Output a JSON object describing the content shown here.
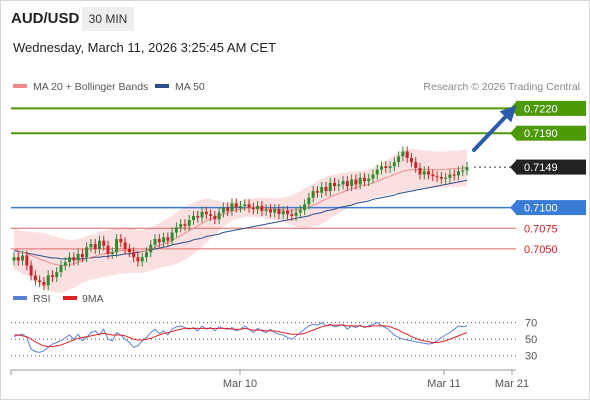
{
  "header": {
    "symbol": "AUD/USD",
    "timeframe": "30 MIN",
    "datetime": "Wednesday, March 11, 2026 3:25:45 AM CET"
  },
  "legend": {
    "ma20_label": "MA 20 + Bollinger Bands",
    "ma50_label": "MA 50",
    "credit": "Research © 2026 Trading Central",
    "rsi_label": "RSI",
    "rsi_ma_label": "9MA"
  },
  "colors": {
    "up_candle": "#2e8b2e",
    "down_candle": "#cc2222",
    "bollinger_fill": "#fadadd",
    "ma20": "#f08a8a",
    "ma50": "#2a4e8c",
    "resistance": "#4e9a06",
    "support_blue": "#3a7bd5",
    "support_red": "#e06666",
    "rsi": "#5b7fd6",
    "rsi_ma": "#dd2222"
  },
  "chart_data": [
    {
      "type": "candlestick",
      "ylim": [
        0.701,
        0.7235
      ],
      "x_ticks": [
        "Mar 10",
        "Mar 11",
        "Mar 21"
      ],
      "levels": [
        {
          "label": "0.7220",
          "value": 0.722,
          "kind": "resistance"
        },
        {
          "label": "0.7190",
          "value": 0.719,
          "kind": "resistance"
        },
        {
          "label": "0.7149",
          "value": 0.7149,
          "kind": "last"
        },
        {
          "label": "0.7100",
          "value": 0.71,
          "kind": "support-blue"
        },
        {
          "label": "0.7075",
          "value": 0.7075,
          "kind": "support-red"
        },
        {
          "label": "0.7050",
          "value": 0.705,
          "kind": "support-red"
        }
      ],
      "close": [
        0.704,
        0.7036,
        0.7042,
        0.703,
        0.7018,
        0.7012,
        0.701,
        0.7006,
        0.7018,
        0.7016,
        0.7022,
        0.703,
        0.7034,
        0.704,
        0.7036,
        0.7044,
        0.704,
        0.7052,
        0.7056,
        0.705,
        0.706,
        0.7054,
        0.7044,
        0.7046,
        0.7062,
        0.7058,
        0.705,
        0.7046,
        0.704,
        0.7035,
        0.704,
        0.7046,
        0.7055,
        0.7062,
        0.7058,
        0.7064,
        0.706,
        0.707,
        0.7076,
        0.708,
        0.7078,
        0.7085,
        0.709,
        0.7088,
        0.7095,
        0.7092,
        0.709,
        0.7086,
        0.7094,
        0.71,
        0.7096,
        0.7105,
        0.71,
        0.7102,
        0.7104,
        0.71,
        0.7098,
        0.7102,
        0.7096,
        0.7098,
        0.7094,
        0.7098,
        0.7092,
        0.7096,
        0.7092,
        0.709,
        0.7094,
        0.7097,
        0.7104,
        0.7112,
        0.712,
        0.7118,
        0.7125,
        0.712,
        0.713,
        0.7126,
        0.7128,
        0.7132,
        0.7126,
        0.7134,
        0.7128,
        0.7136,
        0.7132,
        0.7135,
        0.714,
        0.7146,
        0.715,
        0.7148,
        0.715,
        0.7155,
        0.7162,
        0.7168,
        0.716,
        0.7155,
        0.7148,
        0.714,
        0.7144,
        0.714,
        0.7138,
        0.7137,
        0.7135,
        0.7136,
        0.714,
        0.7139,
        0.7144,
        0.7145,
        0.7149
      ],
      "ma20": [
        0.705,
        0.7048,
        0.7046,
        0.7044,
        0.7042,
        0.704,
        0.7038,
        0.7036,
        0.7034,
        0.7032,
        0.7031,
        0.703,
        0.703,
        0.7031,
        0.7032,
        0.7034,
        0.7036,
        0.7038,
        0.704,
        0.7041,
        0.7043,
        0.7044,
        0.7045,
        0.7046,
        0.7047,
        0.7048,
        0.7048,
        0.7048,
        0.7048,
        0.7047,
        0.7047,
        0.7048,
        0.705,
        0.7052,
        0.7054,
        0.7056,
        0.7058,
        0.706,
        0.7063,
        0.7066,
        0.7069,
        0.7072,
        0.7075,
        0.7078,
        0.7081,
        0.7084,
        0.7086,
        0.7088,
        0.709,
        0.7092,
        0.7094,
        0.7096,
        0.7097,
        0.7098,
        0.7099,
        0.71,
        0.71,
        0.71,
        0.71,
        0.7099,
        0.7099,
        0.7098,
        0.7098,
        0.7097,
        0.7097,
        0.7097,
        0.7097,
        0.7098,
        0.7099,
        0.7101,
        0.7103,
        0.7105,
        0.7108,
        0.711,
        0.7113,
        0.7115,
        0.7117,
        0.7119,
        0.7121,
        0.7123,
        0.7124,
        0.7126,
        0.7127,
        0.7128,
        0.713,
        0.7132,
        0.7134,
        0.7136,
        0.7138,
        0.714,
        0.7142,
        0.7144,
        0.7145,
        0.7146,
        0.7146,
        0.7146,
        0.7146,
        0.7146,
        0.7146,
        0.7146,
        0.7146,
        0.7146,
        0.7147,
        0.7147,
        0.7147,
        0.7148,
        0.7148
      ],
      "ma50": [
        0.7048,
        0.7047,
        0.7046,
        0.7045,
        0.7044,
        0.7043,
        0.7042,
        0.7041,
        0.704,
        0.7039,
        0.7039,
        0.7038,
        0.7038,
        0.7038,
        0.7038,
        0.7038,
        0.7038,
        0.7039,
        0.7039,
        0.704,
        0.704,
        0.7041,
        0.7041,
        0.7042,
        0.7042,
        0.7043,
        0.7044,
        0.7044,
        0.7045,
        0.7046,
        0.7047,
        0.7048,
        0.7049,
        0.705,
        0.7051,
        0.7052,
        0.7053,
        0.7055,
        0.7056,
        0.7057,
        0.7058,
        0.7059,
        0.7061,
        0.7062,
        0.7063,
        0.7065,
        0.7066,
        0.7067,
        0.7068,
        0.707,
        0.7071,
        0.7072,
        0.7073,
        0.7074,
        0.7075,
        0.7076,
        0.7077,
        0.7078,
        0.7079,
        0.708,
        0.7081,
        0.7082,
        0.7083,
        0.7084,
        0.7085,
        0.7086,
        0.7087,
        0.7088,
        0.7089,
        0.709,
        0.7092,
        0.7093,
        0.7094,
        0.7096,
        0.7097,
        0.7098,
        0.71,
        0.7101,
        0.7102,
        0.7103,
        0.7105,
        0.7106,
        0.7107,
        0.7108,
        0.711,
        0.7111,
        0.7112,
        0.7113,
        0.7114,
        0.7115,
        0.7117,
        0.7118,
        0.7119,
        0.712,
        0.7121,
        0.7122,
        0.7123,
        0.7124,
        0.7125,
        0.7126,
        0.7127,
        0.7128,
        0.7129,
        0.713,
        0.7131,
        0.7132,
        0.7133
      ],
      "bb_width": [
        0.0025,
        0.0025,
        0.0026,
        0.0027,
        0.0028,
        0.003,
        0.0032,
        0.0033,
        0.0034,
        0.0034,
        0.0034,
        0.0033,
        0.0032,
        0.003,
        0.0029,
        0.0028,
        0.0027,
        0.0027,
        0.0027,
        0.0027,
        0.0028,
        0.0028,
        0.0028,
        0.0028,
        0.0028,
        0.0028,
        0.0028,
        0.0027,
        0.0027,
        0.0026,
        0.0026,
        0.0026,
        0.0026,
        0.0027,
        0.0027,
        0.0028,
        0.0029,
        0.003,
        0.0031,
        0.0032,
        0.0032,
        0.0032,
        0.0031,
        0.003,
        0.0029,
        0.0027,
        0.0024,
        0.0021,
        0.0018,
        0.0015,
        0.0013,
        0.0012,
        0.0011,
        0.0011,
        0.0011,
        0.0011,
        0.0011,
        0.0012,
        0.0012,
        0.0013,
        0.0013,
        0.0013,
        0.0014,
        0.0015,
        0.0016,
        0.0018,
        0.002,
        0.0022,
        0.0024,
        0.0025,
        0.0026,
        0.0027,
        0.0027,
        0.0027,
        0.0026,
        0.0025,
        0.0024,
        0.0023,
        0.0022,
        0.0021,
        0.002,
        0.0019,
        0.0018,
        0.0018,
        0.0018,
        0.0019,
        0.002,
        0.0021,
        0.0022,
        0.0023,
        0.0024,
        0.0025,
        0.0025,
        0.0025,
        0.0025,
        0.0024,
        0.0023,
        0.0023,
        0.0022,
        0.0022,
        0.0022,
        0.0022,
        0.0022,
        0.0022,
        0.0022,
        0.0022,
        0.0022
      ]
    },
    {
      "type": "line",
      "series": [
        {
          "name": "RSI"
        },
        {
          "name": "9MA"
        }
      ],
      "ylim": [
        20,
        78
      ],
      "y_ticks": [
        70,
        50,
        30
      ],
      "rsi": [
        53,
        55,
        56,
        52,
        38,
        35,
        34,
        36,
        40,
        44,
        46,
        48,
        52,
        55,
        50,
        56,
        48,
        52,
        58,
        60,
        55,
        62,
        50,
        48,
        58,
        55,
        50,
        46,
        40,
        42,
        48,
        52,
        58,
        62,
        57,
        60,
        55,
        62,
        65,
        66,
        64,
        62,
        64,
        60,
        66,
        62,
        64,
        60,
        65,
        63,
        62,
        64,
        60,
        62,
        66,
        62,
        58,
        63,
        60,
        58,
        62,
        58,
        56,
        55,
        52,
        50,
        54,
        58,
        62,
        66,
        68,
        67,
        70,
        66,
        68,
        65,
        66,
        68,
        62,
        66,
        64,
        67,
        64,
        66,
        68,
        70,
        66,
        64,
        60,
        55,
        52,
        50,
        49,
        48,
        47,
        46,
        45,
        44,
        45,
        48,
        52,
        55,
        58,
        62,
        66,
        65,
        66
      ],
      "rsi_ma": [
        55,
        55,
        54,
        53,
        50,
        47,
        44,
        42,
        41,
        41,
        42,
        43,
        45,
        47,
        49,
        51,
        52,
        53,
        54,
        55,
        56,
        57,
        56,
        55,
        55,
        55,
        54,
        52,
        50,
        49,
        49,
        50,
        51,
        53,
        55,
        57,
        58,
        59,
        61,
        62,
        63,
        63,
        63,
        63,
        63,
        63,
        63,
        63,
        63,
        63,
        63,
        62,
        62,
        62,
        63,
        62,
        61,
        61,
        61,
        60,
        60,
        60,
        59,
        58,
        57,
        56,
        56,
        56,
        57,
        59,
        61,
        63,
        65,
        66,
        67,
        67,
        67,
        67,
        66,
        66,
        66,
        66,
        65,
        65,
        66,
        66,
        66,
        66,
        65,
        63,
        61,
        58,
        56,
        53,
        51,
        49,
        48,
        47,
        46,
        46,
        47,
        48,
        50,
        52,
        54,
        56,
        58
      ]
    }
  ]
}
